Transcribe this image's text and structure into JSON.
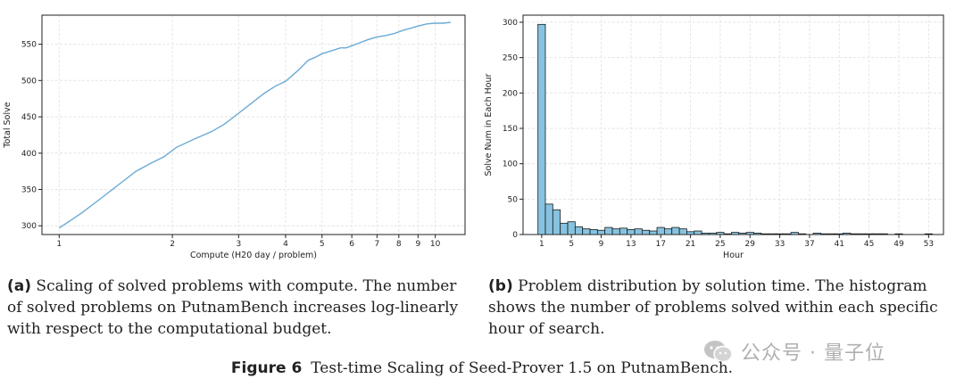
{
  "chart_data": [
    {
      "type": "line",
      "xscale": "log",
      "xlabel": "Compute (H20 day / problem)",
      "ylabel": "Total Solve",
      "xlim": [
        0.9,
        12
      ],
      "ylim": [
        288,
        590
      ],
      "xticks": [
        1,
        2,
        3,
        4,
        5,
        6,
        7,
        8,
        9,
        10
      ],
      "xtick_labels": [
        "1",
        "2",
        "3",
        "4",
        "5",
        "6",
        "7",
        "8",
        "9",
        "10"
      ],
      "yticks": [
        300,
        350,
        400,
        450,
        500,
        550
      ],
      "ytick_labels": [
        "300",
        "350",
        "400",
        "450",
        "500",
        "550"
      ],
      "grid": true,
      "color": "#6aaad4",
      "x": [
        1.0,
        1.15,
        1.3,
        1.45,
        1.6,
        1.75,
        1.9,
        2.05,
        2.3,
        2.55,
        2.75,
        3.0,
        3.25,
        3.5,
        3.75,
        4.0,
        4.3,
        4.6,
        4.8,
        5.0,
        5.3,
        5.6,
        5.8,
        6.0,
        6.3,
        6.6,
        7.0,
        7.4,
        7.8,
        8.2,
        8.6,
        9.0,
        9.5,
        10.0,
        10.5,
        11.0
      ],
      "y": [
        297,
        318,
        339,
        358,
        375,
        386,
        395,
        408,
        420,
        430,
        440,
        455,
        469,
        482,
        492,
        499,
        513,
        528,
        532,
        537,
        541,
        545,
        545,
        548,
        552,
        556,
        560,
        562,
        565,
        569,
        572,
        575,
        578,
        579,
        579,
        580
      ]
    },
    {
      "type": "bar",
      "xlabel": "Hour",
      "ylabel": "Solve Num in Each Hour",
      "xlim": [
        -1.5,
        55
      ],
      "ylim": [
        0,
        310
      ],
      "xticks": [
        1,
        5,
        9,
        13,
        17,
        21,
        25,
        29,
        33,
        37,
        41,
        45,
        49,
        53
      ],
      "xtick_labels": [
        "1",
        "5",
        "9",
        "13",
        "17",
        "21",
        "25",
        "29",
        "33",
        "37",
        "41",
        "45",
        "49",
        "53"
      ],
      "yticks": [
        0,
        50,
        100,
        150,
        200,
        250,
        300
      ],
      "ytick_labels": [
        "0",
        "50",
        "100",
        "150",
        "200",
        "250",
        "300"
      ],
      "grid": true,
      "color": "#87c3e0",
      "categories": [
        1,
        2,
        3,
        4,
        5,
        6,
        7,
        8,
        9,
        10,
        11,
        12,
        13,
        14,
        15,
        16,
        17,
        18,
        19,
        20,
        21,
        22,
        23,
        24,
        25,
        26,
        27,
        28,
        29,
        30,
        31,
        32,
        33,
        34,
        35,
        36,
        37,
        38,
        39,
        40,
        41,
        42,
        43,
        44,
        45,
        46,
        47,
        48,
        49,
        50,
        51,
        52,
        53
      ],
      "values": [
        297,
        43,
        35,
        16,
        18,
        11,
        8,
        7,
        6,
        10,
        8,
        9,
        7,
        8,
        6,
        5,
        10,
        8,
        10,
        8,
        4,
        5,
        2,
        2,
        3,
        1,
        3,
        2,
        3,
        2,
        1,
        1,
        1,
        1,
        3,
        1,
        0,
        2,
        1,
        1,
        1,
        2,
        1,
        1,
        1,
        1,
        1,
        0,
        1,
        0,
        0,
        0,
        1
      ]
    }
  ],
  "captions": {
    "a_label": "(a)",
    "a_text": "Scaling of solved problems with compute. The number of solved problems on PutnamBench increases log-linearly with respect to the computational budget.",
    "b_label": "(b)",
    "b_text": "Problem distribution by solution time. The histogram shows the number of problems solved within each specific hour of search.",
    "figure_label": "Figure 6",
    "figure_text": "Test-time Scaling of Seed-Prover 1.5 on PutnamBench."
  },
  "watermark": {
    "text": "公众号 · 量子位",
    "icon": "wechat-icon"
  }
}
